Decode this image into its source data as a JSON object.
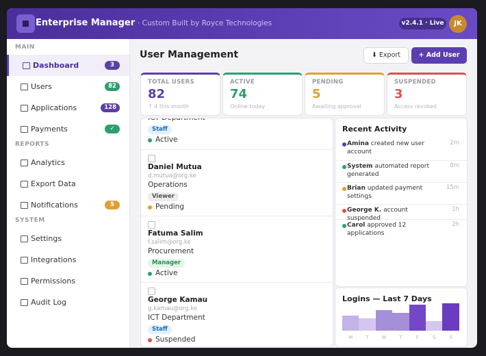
{
  "header": {
    "title": "Enterprise Manager",
    "subtitle": "· Custom Built by Royce Technologies",
    "version": "v2.4.1 · Live",
    "avatar": "JK"
  },
  "sidebar": {
    "sections": [
      {
        "label": "MAIN",
        "items": [
          {
            "label": "Dashboard",
            "badge": 3,
            "badge_color": "#5b3fa8",
            "active": true
          },
          {
            "label": "Users",
            "badge": 82,
            "badge_color": "#2e9e6e"
          },
          {
            "label": "Applications",
            "badge": 128,
            "badge_color": "#5b3fa8"
          },
          {
            "label": "Payments",
            "badge": "✓",
            "badge_color": "#2e9e6e"
          }
        ]
      },
      {
        "label": "REPORTS",
        "items": [
          {
            "label": "Analytics"
          },
          {
            "label": "Export Data"
          },
          {
            "label": "Notifications",
            "badge": 5,
            "badge_color": "#e0a030"
          }
        ]
      },
      {
        "label": "SYSTEM",
        "items": [
          {
            "label": "Settings"
          },
          {
            "label": "Integrations"
          },
          {
            "label": "Permissions"
          },
          {
            "label": "Audit Log"
          }
        ]
      }
    ]
  },
  "page": {
    "title": "User Management",
    "buttons": [
      "⬇ Export",
      "+ Add User"
    ]
  },
  "stats": [
    {
      "label": "TOTAL USERS",
      "value": 82,
      "note": "↑ 4 this month",
      "color": "#5b3fa8"
    },
    {
      "label": "ACTIVE",
      "value": 74,
      "note": "Online today",
      "color": "#2e9e6e"
    },
    {
      "label": "PENDING",
      "value": 5,
      "note": "Awaiting approval",
      "color": "#e0a030"
    },
    {
      "label": "SUSPENDED",
      "value": 3,
      "note": "Access revoked",
      "color": "#d9534f"
    }
  ],
  "users": [
    {
      "department": "ICT Department",
      "role": "Staff",
      "role_color": "#1f6fb0",
      "role_bg": "#e1f0fb",
      "status": "Active",
      "status_color": "#2e9e6e"
    },
    {
      "name": "Daniel Mutua",
      "email": "d.mutua@org.ke",
      "department": "Operations",
      "role": "Viewer",
      "role_color": "#555555",
      "role_bg": "#ececec",
      "status": "Pending",
      "status_color": "#e0a030"
    },
    {
      "name": "Fatuma Salim",
      "email": "f.salim@org.ke",
      "department": "Procurement",
      "role": "Manager",
      "role_color": "#2e8b57",
      "role_bg": "#e2f5e8",
      "status": "Active",
      "status_color": "#2e9e6e"
    },
    {
      "name": "George Kamau",
      "email": "g.kamau@org.ke",
      "department": "ICT Department",
      "role": "Staff",
      "role_color": "#1f6fb0",
      "role_bg": "#e1f0fb",
      "status": "Suspended",
      "status_color": "#d9534f"
    }
  ],
  "activity": {
    "title": "Recent Activity",
    "items": [
      {
        "actor": "Amina",
        "text": "created new user account",
        "time": "2m",
        "color": "#5b3fa8"
      },
      {
        "actor": "System",
        "text": "automated report generated",
        "time": "8m",
        "color": "#2e9e6e"
      },
      {
        "actor": "Brian",
        "text": "updated payment settings",
        "time": "15m",
        "color": "#e0a030"
      },
      {
        "actor": "George K.",
        "text": "account suspended",
        "time": "1h",
        "color": "#d9534f"
      },
      {
        "actor": "Carol",
        "text": "approved 12 applications",
        "time": "2h",
        "color": "#2e9e6e"
      }
    ]
  },
  "logins": {
    "title": "Logins — Last 7 Days",
    "days": [
      "M",
      "T",
      "W",
      "T",
      "F",
      "S",
      "S"
    ],
    "values": [
      22,
      18,
      30,
      26,
      38,
      14,
      40
    ],
    "colors": [
      "#c3b3e6",
      "#d3c7ef",
      "#a58fd8",
      "#a58fd8",
      "#7446c8",
      "#d3c7ef",
      "#6a3cc0"
    ]
  }
}
